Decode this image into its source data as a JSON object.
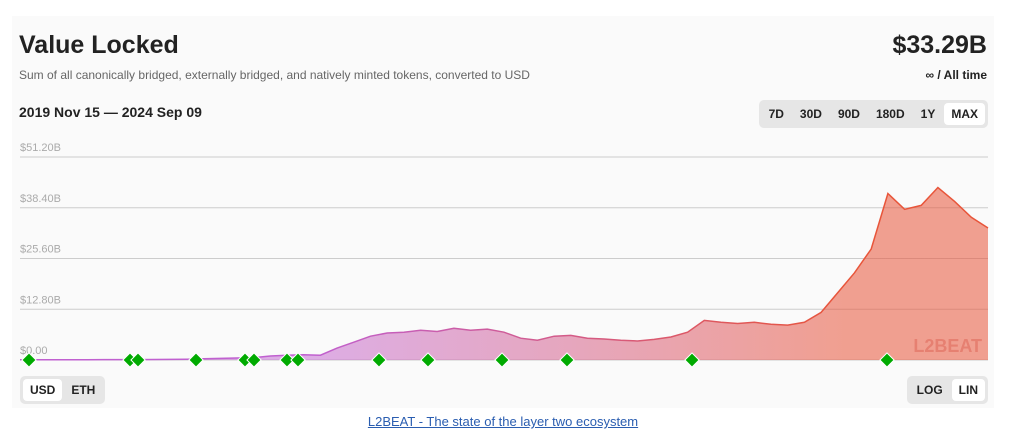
{
  "header": {
    "title": "Value Locked",
    "value": "$33.29B",
    "subtitle": "Sum of all canonically bridged, externally bridged, and natively minted tokens, converted to USD",
    "period": "∞ / All time",
    "range": "2019 Nov 15 — 2024 Sep 09"
  },
  "range_buttons": [
    "7D",
    "30D",
    "90D",
    "180D",
    "1Y",
    "MAX"
  ],
  "selected_range": "MAX",
  "unit_buttons": [
    "USD",
    "ETH"
  ],
  "selected_unit": "USD",
  "scale_buttons": [
    "LOG",
    "LIN"
  ],
  "selected_scale": "LIN",
  "footer_link": "L2BEAT - The state of the layer two ecosystem",
  "chart_data": {
    "type": "area",
    "watermark": "L2BEAT",
    "values": [
      0.05,
      0.06,
      0.07,
      0.08,
      0.08,
      0.09,
      0.1,
      0.1,
      0.12,
      0.15,
      0.2,
      0.3,
      0.4,
      0.5,
      0.6,
      1.0,
      1.2,
      1.3,
      1.2,
      3.0,
      4.5,
      6.0,
      6.8,
      7.0,
      7.5,
      7.2,
      8.0,
      7.5,
      7.8,
      7.0,
      5.5,
      5.0,
      6.0,
      6.2,
      5.5,
      5.3,
      5.0,
      4.8,
      5.2,
      5.8,
      7.0,
      10.0,
      9.5,
      9.2,
      9.5,
      9.0,
      8.8,
      9.5,
      12.0,
      17.0,
      22.0,
      28.0,
      42.0,
      38.0,
      39.0,
      43.5,
      40.0,
      36.0,
      33.29
    ],
    "color_start": "#c060d0",
    "color_end": "#e8553a",
    "ylim": [
      0,
      51.2
    ],
    "yticks": [
      {
        "value": 0,
        "label": "$0.00"
      },
      {
        "value": 12.8,
        "label": "$12.80B"
      },
      {
        "value": 25.6,
        "label": "$25.60B"
      },
      {
        "value": 38.4,
        "label": "$38.40B"
      },
      {
        "value": 51.2,
        "label": "$51.20B"
      }
    ],
    "grid": true
  }
}
